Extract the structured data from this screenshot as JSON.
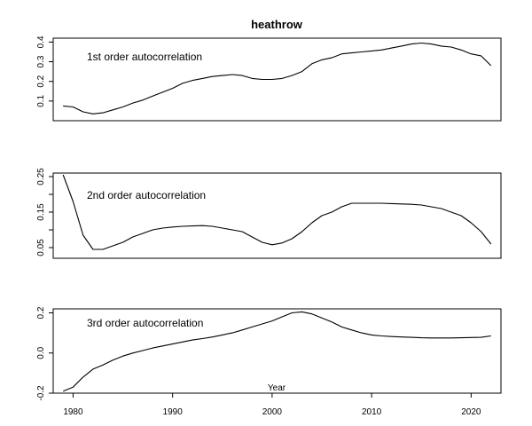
{
  "chart_data": {
    "type": "line",
    "title": "heathrow",
    "xlabel": "Year",
    "xlim": [
      1978,
      2023
    ],
    "x_ticks": [
      1980,
      1990,
      2000,
      2010,
      2020
    ],
    "grid": false,
    "panels": [
      {
        "annotation": "1st order autocorrelation",
        "ylim": [
          0.0,
          0.42
        ],
        "y_ticks": [
          0.1,
          0.2,
          0.3,
          0.4
        ],
        "y_tick_labels": [
          "0.1",
          "0.2",
          "0.3",
          "0.4"
        ],
        "series": [
          {
            "x": [
              1979,
              1980,
              1981,
              1982,
              1983,
              1984,
              1985,
              1986,
              1987,
              1988,
              1989,
              1990,
              1991,
              1992,
              1993,
              1994,
              1995,
              1996,
              1997,
              1998,
              1999,
              2000,
              2001,
              2002,
              2003,
              2004,
              2005,
              2006,
              2007,
              2008,
              2009,
              2010,
              2011,
              2012,
              2013,
              2014,
              2015,
              2016,
              2017,
              2018,
              2019,
              2020,
              2021,
              2022
            ],
            "values": [
              0.075,
              0.07,
              0.045,
              0.035,
              0.04,
              0.055,
              0.07,
              0.09,
              0.105,
              0.125,
              0.145,
              0.165,
              0.19,
              0.205,
              0.215,
              0.225,
              0.23,
              0.235,
              0.23,
              0.215,
              0.21,
              0.21,
              0.215,
              0.23,
              0.25,
              0.29,
              0.31,
              0.32,
              0.34,
              0.345,
              0.35,
              0.355,
              0.36,
              0.37,
              0.38,
              0.39,
              0.395,
              0.39,
              0.38,
              0.375,
              0.36,
              0.34,
              0.33,
              0.28
            ]
          }
        ]
      },
      {
        "annotation": "2nd order autocorrelation",
        "ylim": [
          0.02,
          0.26
        ],
        "y_ticks": [
          0.05,
          0.1,
          0.15,
          0.2,
          0.25
        ],
        "y_tick_labels": [
          "0.05",
          "",
          "0.15",
          "",
          "0.25"
        ],
        "series": [
          {
            "x": [
              1979,
              1980,
              1981,
              1982,
              1983,
              1984,
              1985,
              1986,
              1987,
              1988,
              1989,
              1990,
              1991,
              1992,
              1993,
              1994,
              1995,
              1996,
              1997,
              1998,
              1999,
              2000,
              2001,
              2002,
              2003,
              2004,
              2005,
              2006,
              2007,
              2008,
              2009,
              2010,
              2011,
              2012,
              2013,
              2014,
              2015,
              2016,
              2017,
              2018,
              2019,
              2020,
              2021,
              2022
            ],
            "values": [
              0.255,
              0.18,
              0.085,
              0.045,
              0.045,
              0.055,
              0.065,
              0.08,
              0.09,
              0.1,
              0.105,
              0.108,
              0.11,
              0.111,
              0.112,
              0.11,
              0.105,
              0.1,
              0.095,
              0.08,
              0.065,
              0.058,
              0.063,
              0.075,
              0.095,
              0.12,
              0.14,
              0.15,
              0.165,
              0.175,
              0.175,
              0.175,
              0.175,
              0.174,
              0.173,
              0.172,
              0.17,
              0.165,
              0.16,
              0.15,
              0.14,
              0.12,
              0.095,
              0.06
            ]
          }
        ]
      },
      {
        "annotation": "3rd order autocorrelation",
        "ylim": [
          -0.2,
          0.22
        ],
        "y_ticks": [
          -0.2,
          0.0,
          0.2
        ],
        "y_tick_labels": [
          "-0.2",
          "0.0",
          "0.2"
        ],
        "series": [
          {
            "x": [
              1979,
              1980,
              1981,
              1982,
              1983,
              1984,
              1985,
              1986,
              1987,
              1988,
              1989,
              1990,
              1991,
              1992,
              1993,
              1994,
              1995,
              1996,
              1997,
              1998,
              1999,
              2000,
              2001,
              2002,
              2003,
              2004,
              2005,
              2006,
              2007,
              2008,
              2009,
              2010,
              2011,
              2012,
              2013,
              2014,
              2015,
              2016,
              2017,
              2018,
              2019,
              2020,
              2021,
              2022
            ],
            "values": [
              -0.19,
              -0.17,
              -0.12,
              -0.08,
              -0.06,
              -0.035,
              -0.015,
              0.0,
              0.012,
              0.025,
              0.035,
              0.045,
              0.055,
              0.065,
              0.072,
              0.08,
              0.09,
              0.1,
              0.115,
              0.13,
              0.145,
              0.16,
              0.18,
              0.2,
              0.205,
              0.195,
              0.175,
              0.155,
              0.13,
              0.115,
              0.1,
              0.09,
              0.085,
              0.082,
              0.08,
              0.078,
              0.076,
              0.075,
              0.075,
              0.075,
              0.076,
              0.077,
              0.078,
              0.085
            ]
          }
        ]
      }
    ]
  }
}
